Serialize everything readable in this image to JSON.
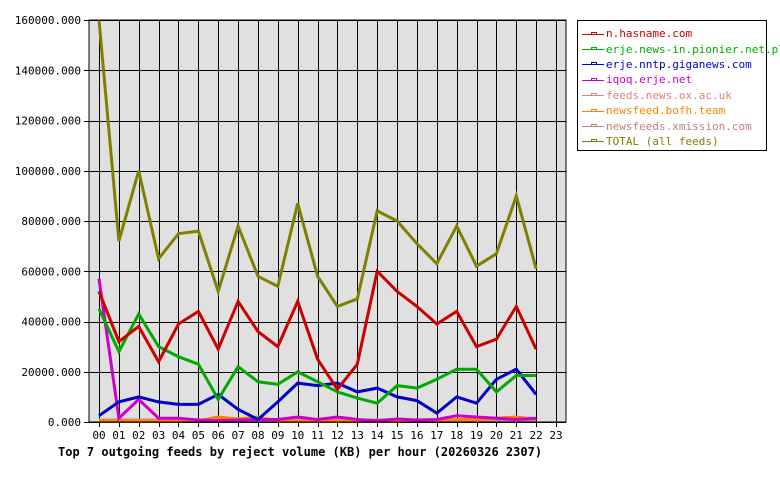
{
  "chart_data": {
    "type": "line",
    "title": "Top 7 outgoing feeds by reject volume (KB) per hour (20260326 2307)",
    "xlabel": "",
    "ylabel": "",
    "ylim": [
      0,
      160000
    ],
    "y_ticks": [
      "0.000",
      "20000.000",
      "40000.000",
      "60000.000",
      "80000.000",
      "100000.000",
      "120000.000",
      "140000.000",
      "160000.000"
    ],
    "categories": [
      "00",
      "01",
      "02",
      "03",
      "04",
      "05",
      "06",
      "07",
      "08",
      "09",
      "10",
      "11",
      "12",
      "13",
      "14",
      "15",
      "16",
      "17",
      "18",
      "19",
      "20",
      "21",
      "22",
      "23"
    ],
    "grid": true,
    "legend_position": "right",
    "series": [
      {
        "name": "n.hasname.com",
        "color": "#cc0000",
        "values": [
          52000,
          32000,
          38000,
          24000,
          39000,
          44000,
          29000,
          48000,
          36000,
          30000,
          48000,
          25000,
          13000,
          23000,
          60000,
          52000,
          46000,
          39000,
          44000,
          30000,
          33000,
          46000,
          29000
        ]
      },
      {
        "name": "erje.news-in.pionier.net.pl",
        "color": "#00aa00",
        "values": [
          45000,
          28000,
          43000,
          30000,
          26000,
          23000,
          9000,
          22000,
          16000,
          15000,
          20000,
          16000,
          12000,
          9500,
          7500,
          14500,
          13500,
          17000,
          21000,
          21000,
          12000,
          18500,
          18500
        ]
      },
      {
        "name": "erje.nntp.giganews.com",
        "color": "#0000cc",
        "values": [
          2500,
          8000,
          10000,
          8000,
          7000,
          7000,
          11000,
          5000,
          1000,
          8000,
          15500,
          14500,
          15500,
          12000,
          13500,
          10000,
          8500,
          3500,
          10000,
          7500,
          17000,
          21000,
          11000
        ]
      },
      {
        "name": "iqoq.erje.net",
        "color": "#cc00cc",
        "values": [
          57000,
          1500,
          9000,
          1500,
          1500,
          800,
          500,
          800,
          1000,
          1000,
          2000,
          1000,
          2000,
          1000,
          500,
          1200,
          800,
          1000,
          2500,
          2000,
          1500,
          1000,
          1500
        ]
      },
      {
        "name": "feeds.news.ox.ac.uk",
        "color": "#e08080",
        "values": [
          800,
          800,
          800,
          800,
          800,
          800,
          800,
          800,
          800,
          800,
          800,
          800,
          800,
          800,
          800,
          800,
          800,
          800,
          800,
          800,
          800,
          800,
          800
        ]
      },
      {
        "name": "newsfeed.bofh.team",
        "color": "#ff8000",
        "values": [
          300,
          300,
          300,
          300,
          300,
          500,
          2000,
          1200,
          2000,
          300,
          300,
          300,
          300,
          300,
          300,
          300,
          500,
          800,
          1000,
          1000,
          1500,
          2000,
          1000
        ]
      },
      {
        "name": "newsfeeds.xmission.com",
        "color": "#c08080",
        "values": [
          500,
          500,
          500,
          500,
          500,
          500,
          500,
          500,
          500,
          500,
          500,
          500,
          500,
          500,
          500,
          500,
          500,
          500,
          500,
          500,
          500,
          500,
          500
        ]
      },
      {
        "name": "TOTAL (all feeds)",
        "color": "#808000",
        "values": [
          160000,
          72000,
          100000,
          65000,
          75000,
          76000,
          52000,
          78000,
          58000,
          54000,
          87000,
          58000,
          46000,
          49000,
          84000,
          80000,
          71000,
          63000,
          78000,
          62000,
          67000,
          90000,
          61000
        ]
      }
    ]
  },
  "legend": {
    "items": [
      {
        "label": "n.hasname.com",
        "color": "#cc0000"
      },
      {
        "label": "erje.news-in.pionier.net.pl",
        "color": "#00aa00"
      },
      {
        "label": "erje.nntp.giganews.com",
        "color": "#0000cc"
      },
      {
        "label": "iqoq.erje.net",
        "color": "#cc00cc"
      },
      {
        "label": "feeds.news.ox.ac.uk",
        "color": "#e08080"
      },
      {
        "label": "newsfeed.bofh.team",
        "color": "#ff8000"
      },
      {
        "label": "newsfeeds.xmission.com",
        "color": "#c08080"
      },
      {
        "label": "TOTAL (all feeds)",
        "color": "#808000"
      }
    ]
  },
  "colors": {
    "plot_background": "#e0e0e0",
    "grid": "#000000"
  }
}
